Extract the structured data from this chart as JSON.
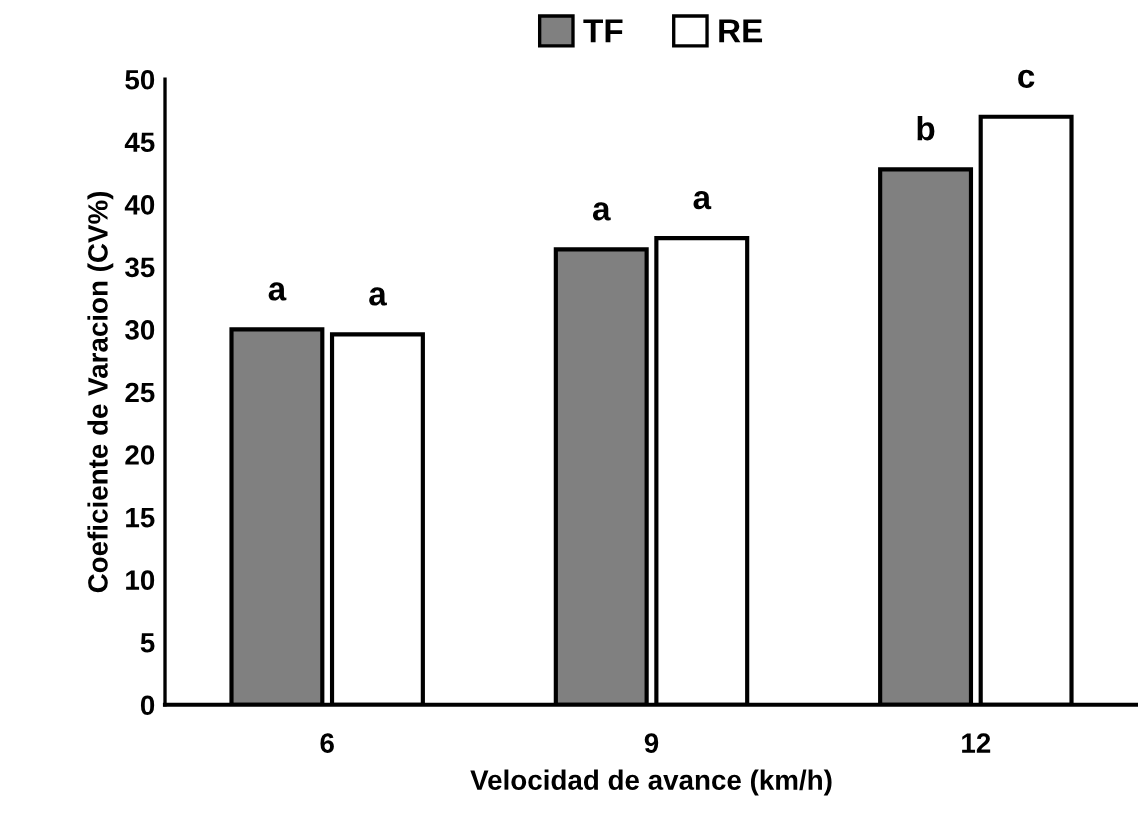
{
  "chart_data": {
    "type": "bar",
    "xlabel": "Velocidad de avance (km/h)",
    "ylabel": "Coeficiente de Varacion (CV%)",
    "categories": [
      "6",
      "9",
      "12"
    ],
    "series": [
      {
        "name": "TF",
        "color": "#808080",
        "values": [
          30.0,
          36.4,
          42.8
        ],
        "value_labels": [
          "a",
          "a",
          "b"
        ]
      },
      {
        "name": "RE",
        "color": "#ffffff",
        "values": [
          29.6,
          37.3,
          47.0
        ],
        "value_labels": [
          "a",
          "a",
          "c"
        ]
      }
    ],
    "ylim": [
      0,
      50
    ],
    "yticks": [
      0,
      5,
      10,
      15,
      20,
      25,
      30,
      35,
      40,
      45,
      50
    ],
    "grid": false,
    "legend": "top"
  }
}
